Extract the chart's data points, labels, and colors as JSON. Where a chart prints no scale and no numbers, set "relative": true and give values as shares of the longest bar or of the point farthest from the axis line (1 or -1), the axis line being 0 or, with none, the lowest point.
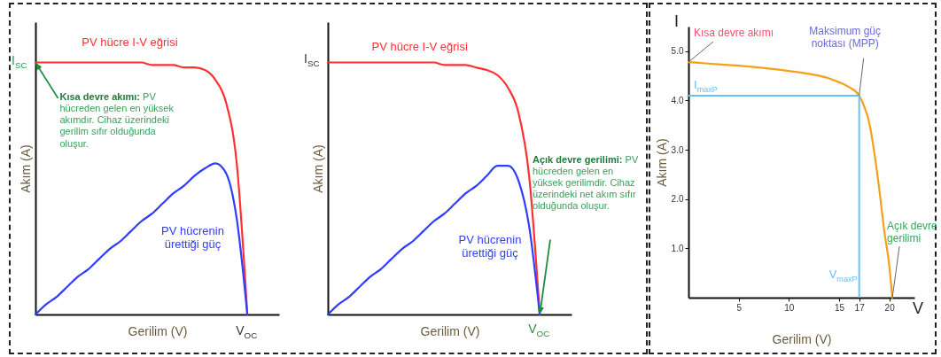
{
  "chart_data": [
    {
      "type": "line",
      "relative": true,
      "xlabel": "Gerilim (V)",
      "ylabel": "Akım (A)",
      "categories": [
        null,
        null,
        null,
        null,
        null,
        null,
        null,
        null,
        null,
        null,
        null,
        null,
        null,
        null,
        null,
        null,
        null,
        null,
        null,
        null,
        null,
        null,
        null,
        null
      ],
      "series": [
        {
          "name": "PV hücre I-V eğrisi",
          "color": "#ff3030",
          "values": [
            1,
            1,
            1,
            1,
            1,
            1,
            1,
            1,
            1,
            1,
            1,
            0.99,
            0.99,
            0.99,
            0.98,
            0.98,
            0.97,
            0.93,
            0.84,
            0.6,
            0,
            null,
            null,
            null
          ]
        },
        {
          "name": "PV hücrenin ürettiği güç",
          "color": "#2f3dff",
          "values": [
            0,
            0.04,
            0.07,
            0.11,
            0.15,
            0.18,
            0.22,
            0.26,
            0.29,
            0.33,
            0.37,
            0.4,
            0.44,
            0.48,
            0.51,
            0.55,
            0.58,
            0.6,
            0.56,
            0.38,
            0,
            null,
            null,
            null
          ]
        }
      ],
      "annotations": [
        "I$_{SC}$",
        "Kısa devre akımı: PV hücreden gelen en yüksek akımdır. Cihaz üzerindeki gerilim sıfır olduğunda oluşur.",
        "V$_{OC}$"
      ]
    },
    {
      "type": "line",
      "relative": true,
      "xlabel": "Gerilim (V)",
      "ylabel": "Akım (A)",
      "categories": [
        null,
        null,
        null,
        null,
        null,
        null,
        null,
        null,
        null,
        null,
        null,
        null,
        null,
        null,
        null,
        null,
        null,
        null,
        null,
        null,
        null,
        null,
        null,
        null
      ],
      "series": [
        {
          "name": "PV hücre I-V eğrisi",
          "color": "#ff3030",
          "values": [
            1,
            1,
            1,
            1,
            1,
            1,
            1,
            1,
            1,
            1,
            1,
            0.99,
            0.99,
            0.99,
            0.98,
            0.97,
            0.95,
            0.9,
            0.8,
            0.55,
            0,
            null,
            null,
            null
          ]
        },
        {
          "name": "PV hücrenin ürettiği güç",
          "color": "#2f3dff",
          "values": [
            0,
            0.04,
            0.07,
            0.11,
            0.15,
            0.18,
            0.22,
            0.26,
            0.29,
            0.33,
            0.37,
            0.4,
            0.44,
            0.48,
            0.51,
            0.55,
            0.59,
            0.59,
            0.53,
            0.35,
            0,
            null,
            null,
            null
          ]
        }
      ],
      "annotations": [
        "I$_{SC}$",
        "Açık devre gerilimi: PV hücreden gelen en yüksek gerilimdir. Cihaz üzerindeki net akım sıfır olduğunda oluşur.",
        "V$_{OC}$"
      ]
    },
    {
      "type": "line",
      "xlabel": "Gerilim (V)",
      "ylabel": "Akım (A)",
      "x": [
        0,
        2,
        4,
        6,
        8,
        10,
        12,
        14,
        15,
        16,
        17,
        17.5,
        18,
        18.5,
        19,
        19.5,
        20,
        20.3
      ],
      "series": [
        {
          "color": "#f5a01a",
          "values": [
            4.78,
            4.75,
            4.72,
            4.69,
            4.65,
            4.6,
            4.54,
            4.45,
            4.37,
            4.27,
            4.1,
            3.88,
            3.55,
            2.95,
            2.2,
            1.35,
            0.64,
            0
          ]
        }
      ],
      "xlim": [
        0,
        22.5
      ],
      "ylim": [
        0,
        5.5
      ],
      "xticks": [
        5,
        10,
        15,
        17,
        20
      ],
      "yticks": [
        {
          "value": 1,
          "label": "1.0"
        },
        {
          "value": 2,
          "label": "2.0"
        },
        {
          "value": 3,
          "label": "3.0"
        },
        {
          "value": 4,
          "label": "4.0"
        },
        {
          "value": 5,
          "label": "5.0"
        }
      ],
      "ref_lines": [
        {
          "axis": "y",
          "value": 4.1,
          "label": "I$_{maxP}$",
          "color": "#63c3f2"
        },
        {
          "axis": "x",
          "value": 17,
          "label": "V$_{maxP}$",
          "color": "#63c3f2"
        }
      ],
      "annotations": [
        "I",
        "V",
        {
          "text": "Kısa devre akımı",
          "x": 0,
          "y": 4.78
        },
        {
          "text": "Maksimum güç noktası (MPP)",
          "x": 17,
          "y": 4.1
        },
        {
          "text": "Açık devre gerilimi",
          "x": 20.3,
          "y": 0
        }
      ]
    }
  ]
}
